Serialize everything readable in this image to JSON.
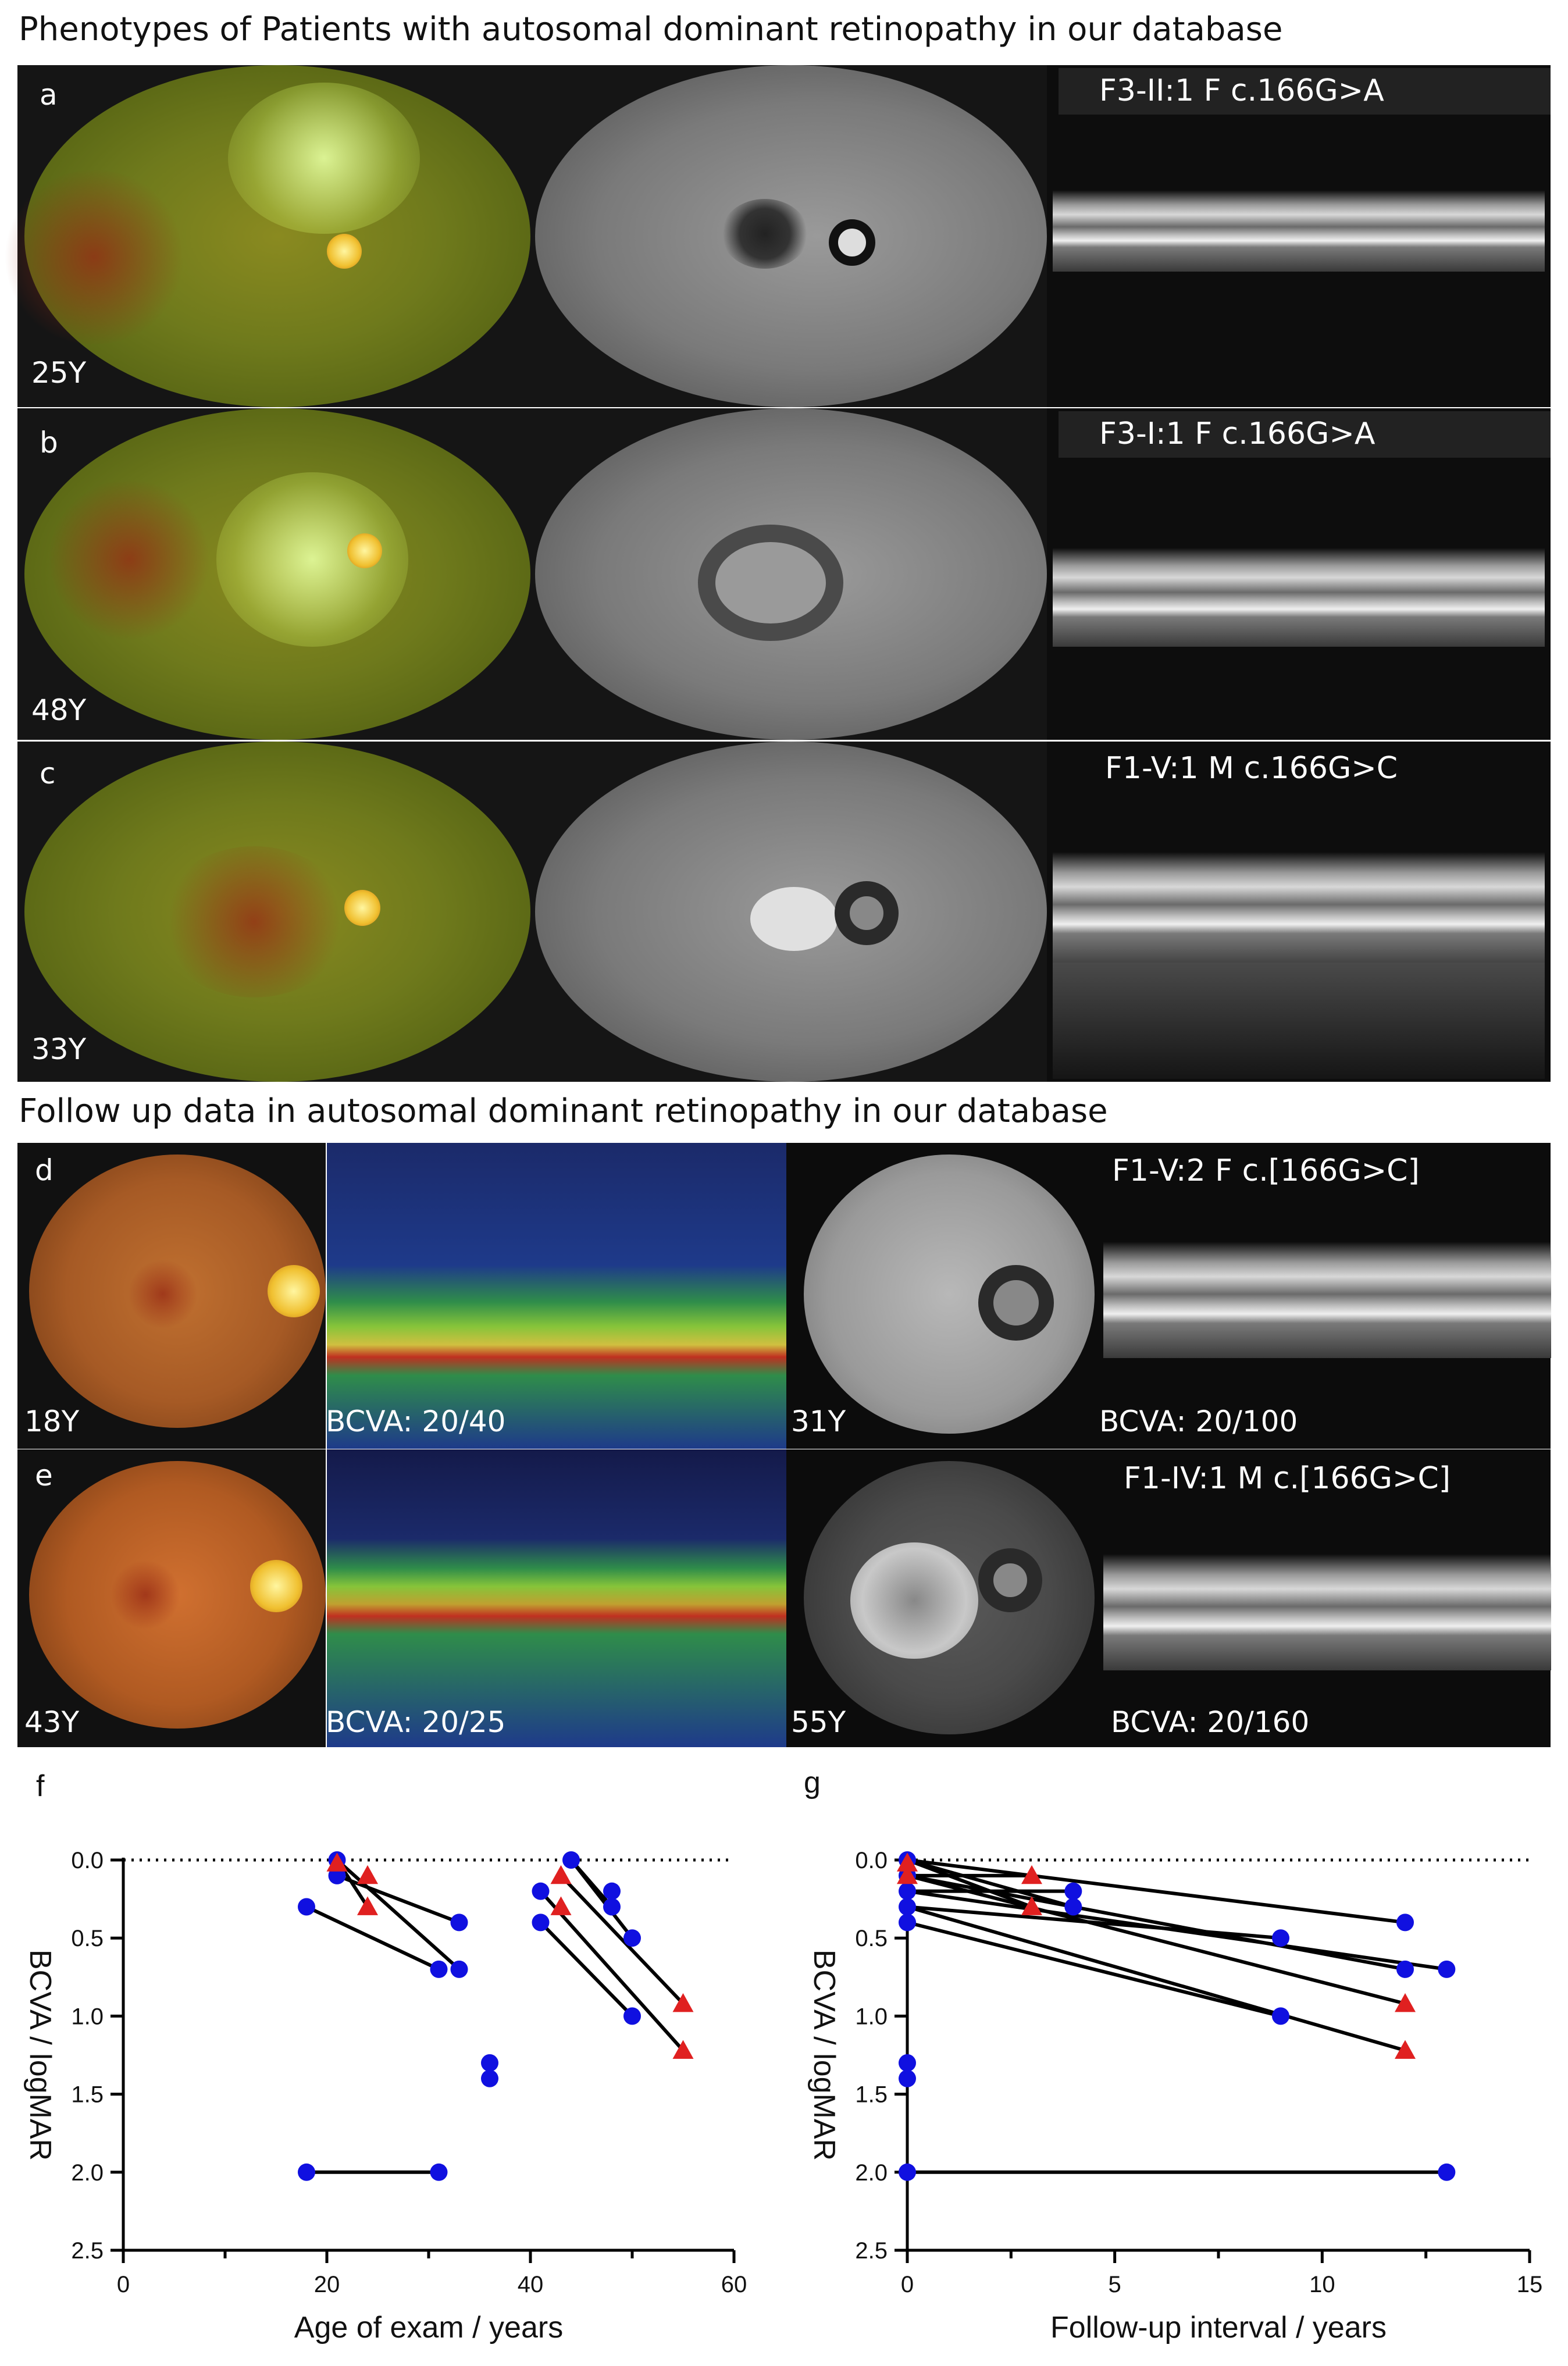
{
  "titles": {
    "phenotypes": "Phenotypes of Patients with autosomal dominant retinopathy in our database",
    "followup": "Follow up data in autosomal dominant retinopathy in our database"
  },
  "panels": {
    "a": {
      "letter": "a",
      "age": "25Y",
      "oct_label": "F3-II:1  F   c.166G>A"
    },
    "b": {
      "letter": "b",
      "age": "48Y",
      "oct_label": "F3-I:1  F  c.166G>A"
    },
    "c": {
      "letter": "c",
      "age": "33Y",
      "oct_label": "F1-V:1  M   c.166G>C"
    },
    "d": {
      "letter": "d",
      "age_left": "18Y",
      "bcva_left": "BCVA: 20/40",
      "age_right": "31Y",
      "oct_label": "F1-V:2  F  c.[166G>C]",
      "bcva_right": "BCVA: 20/100"
    },
    "e": {
      "letter": "e",
      "age_left": "43Y",
      "bcva_left": "BCVA: 20/25",
      "age_right": "55Y",
      "oct_label": "F1-IV:1  M  c.[166G>C]",
      "bcva_right": "BCVA: 20/160"
    }
  },
  "colors": {
    "blue": "#1010e0",
    "red": "#e02020",
    "line": "#000000"
  },
  "chart_data": [
    {
      "panel": "f",
      "type": "scatter",
      "xlabel": "Age of exam / years",
      "ylabel": "BCVA / logMAR",
      "xlim": [
        0,
        60
      ],
      "ylim": [
        0,
        2.5
      ],
      "y_inverted": true,
      "xticks": [
        "0",
        "20",
        "40",
        "60"
      ],
      "yticks": [
        "0.0",
        "0.5",
        "1.0",
        "1.5",
        "2.0",
        "2.5"
      ],
      "reference_line": 0,
      "points": [
        {
          "x": 18,
          "y": 0.3,
          "m": "circle"
        },
        {
          "x": 31,
          "y": 0.7,
          "m": "circle"
        },
        {
          "x": 21,
          "y": 0.0,
          "m": "circle"
        },
        {
          "x": 33,
          "y": 0.7,
          "m": "circle"
        },
        {
          "x": 21,
          "y": 0.1,
          "m": "circle"
        },
        {
          "x": 33,
          "y": 0.4,
          "m": "circle"
        },
        {
          "x": 21,
          "y": 0.02,
          "m": "triangle"
        },
        {
          "x": 24,
          "y": 0.1,
          "m": "triangle"
        },
        {
          "x": 24,
          "y": 0.3,
          "m": "triangle"
        },
        {
          "x": 18,
          "y": 2.0,
          "m": "circle"
        },
        {
          "x": 31,
          "y": 2.0,
          "m": "circle"
        },
        {
          "x": 36,
          "y": 1.3,
          "m": "circle"
        },
        {
          "x": 36,
          "y": 1.4,
          "m": "circle"
        },
        {
          "x": 41,
          "y": 0.2,
          "m": "circle"
        },
        {
          "x": 41,
          "y": 0.4,
          "m": "circle"
        },
        {
          "x": 43,
          "y": 0.1,
          "m": "triangle"
        },
        {
          "x": 43,
          "y": 0.3,
          "m": "triangle"
        },
        {
          "x": 44,
          "y": 0.0,
          "m": "circle"
        },
        {
          "x": 48,
          "y": 0.2,
          "m": "circle"
        },
        {
          "x": 48,
          "y": 0.3,
          "m": "circle"
        },
        {
          "x": 50,
          "y": 0.5,
          "m": "circle"
        },
        {
          "x": 50,
          "y": 1.0,
          "m": "circle"
        },
        {
          "x": 55,
          "y": 0.92,
          "m": "triangle"
        },
        {
          "x": 55,
          "y": 1.22,
          "m": "triangle"
        }
      ],
      "segments": [
        [
          18,
          0.3,
          31,
          0.7
        ],
        [
          21,
          0.0,
          33,
          0.7
        ],
        [
          21,
          0.1,
          33,
          0.4
        ],
        [
          21,
          0.0,
          24,
          0.3
        ],
        [
          18,
          2.0,
          31,
          2.0
        ],
        [
          44,
          0.0,
          48,
          0.3
        ],
        [
          44,
          0.0,
          50,
          0.5
        ],
        [
          43,
          0.1,
          55,
          0.92
        ],
        [
          41,
          0.2,
          55,
          1.22
        ],
        [
          41,
          0.4,
          50,
          1.0
        ]
      ]
    },
    {
      "panel": "g",
      "type": "scatter",
      "xlabel": "Follow-up interval / years",
      "ylabel": "BCVA / logMAR",
      "xlim": [
        0,
        15
      ],
      "ylim": [
        0,
        2.5
      ],
      "y_inverted": true,
      "xticks": [
        "0",
        "5",
        "10",
        "15"
      ],
      "yticks": [
        "0.0",
        "0.5",
        "1.0",
        "1.5",
        "2.0",
        "2.5"
      ],
      "reference_line": 0,
      "points": [
        {
          "x": 0,
          "y": 0.0,
          "m": "circle"
        },
        {
          "x": 0,
          "y": 0.1,
          "m": "circle"
        },
        {
          "x": 0,
          "y": 0.2,
          "m": "circle"
        },
        {
          "x": 0,
          "y": 0.3,
          "m": "circle"
        },
        {
          "x": 0,
          "y": 0.4,
          "m": "circle"
        },
        {
          "x": 0,
          "y": 0.02,
          "m": "triangle"
        },
        {
          "x": 0,
          "y": 0.1,
          "m": "triangle"
        },
        {
          "x": 0,
          "y": 1.3,
          "m": "circle"
        },
        {
          "x": 0,
          "y": 1.4,
          "m": "circle"
        },
        {
          "x": 0,
          "y": 2.0,
          "m": "circle"
        },
        {
          "x": 3,
          "y": 0.1,
          "m": "triangle"
        },
        {
          "x": 3,
          "y": 0.3,
          "m": "triangle"
        },
        {
          "x": 4,
          "y": 0.2,
          "m": "circle"
        },
        {
          "x": 4,
          "y": 0.3,
          "m": "circle"
        },
        {
          "x": 9,
          "y": 0.5,
          "m": "circle"
        },
        {
          "x": 9,
          "y": 1.0,
          "m": "circle"
        },
        {
          "x": 12,
          "y": 0.4,
          "m": "circle"
        },
        {
          "x": 12,
          "y": 0.7,
          "m": "circle"
        },
        {
          "x": 12,
          "y": 0.92,
          "m": "triangle"
        },
        {
          "x": 12,
          "y": 1.22,
          "m": "triangle"
        },
        {
          "x": 13,
          "y": 0.7,
          "m": "circle"
        },
        {
          "x": 13,
          "y": 2.0,
          "m": "circle"
        }
      ],
      "segments": [
        [
          0,
          0.0,
          3,
          0.3
        ],
        [
          0,
          0.1,
          3,
          0.1
        ],
        [
          0,
          0.0,
          4,
          0.3
        ],
        [
          0,
          0.2,
          4,
          0.2
        ],
        [
          0,
          0.0,
          12,
          0.4
        ],
        [
          0,
          0.1,
          12,
          0.7
        ],
        [
          0,
          0.2,
          13,
          0.7
        ],
        [
          0,
          0.3,
          9,
          0.5
        ],
        [
          0,
          0.1,
          12,
          0.92
        ],
        [
          0,
          0.3,
          12,
          1.22
        ],
        [
          0,
          0.4,
          9,
          1.0
        ],
        [
          0,
          2.0,
          13,
          2.0
        ]
      ]
    }
  ]
}
